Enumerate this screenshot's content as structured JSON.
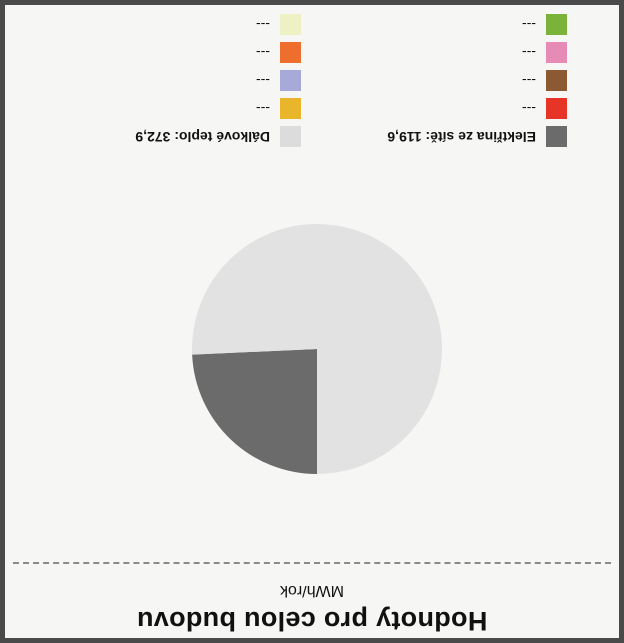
{
  "chart_data": {
    "type": "pie",
    "title": "Hodnoty pro celou budovu",
    "subtitle": "MWh/rok",
    "series": [
      {
        "name": "Elektřina ze sítě",
        "value": 119.6,
        "value_label": "119,6",
        "color": "#6b6b6b"
      },
      {
        "name": "Dálkové teplo",
        "value": 372.9,
        "value_label": "372,9",
        "color": "#e2e2e2"
      }
    ],
    "legend": {
      "placement": "bottom",
      "columns": [
        [
          {
            "label": "Elektřina ze sítě: 119,6",
            "color": "#6b6b6b"
          },
          {
            "label": "---",
            "color": "#e63527"
          },
          {
            "label": "---",
            "color": "#8b5a33"
          },
          {
            "label": "---",
            "color": "#e58bb5"
          },
          {
            "label": "---",
            "color": "#7bb33a"
          }
        ],
        [
          {
            "label": "Dálkové teplo: 372,9",
            "color": "#dcdcdc"
          },
          {
            "label": "---",
            "color": "#e9b62b"
          },
          {
            "label": "---",
            "color": "#a7a9d8"
          },
          {
            "label": "---",
            "color": "#ee6e2d"
          },
          {
            "label": "---",
            "color": "#eef1c4"
          }
        ]
      ]
    }
  }
}
